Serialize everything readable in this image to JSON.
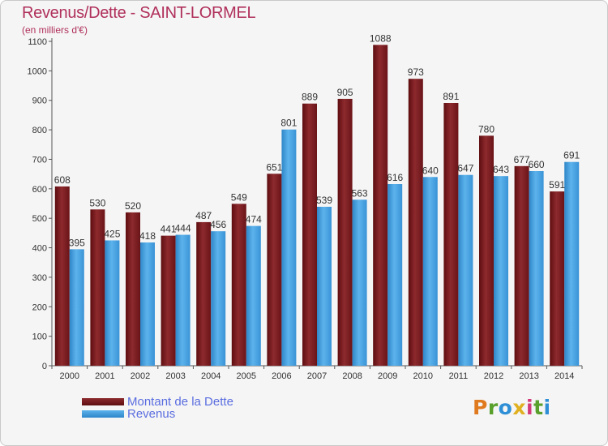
{
  "title": "Revenus/Dette - SAINT-LORMEL",
  "subtitle": "(en milliers d'€)",
  "logo_text": "Proxiti",
  "colors": {
    "dette": "#7a1c1f",
    "revenus": "#4aa3e0",
    "title": "#b0305b",
    "legend_text": "#5a6de0"
  },
  "chart_data": {
    "type": "bar",
    "title": "Revenus/Dette - SAINT-LORMEL",
    "subtitle": "(en milliers d'€)",
    "xlabel": "",
    "ylabel": "",
    "ylim": [
      0,
      1100
    ],
    "yticks": [
      0,
      100,
      200,
      300,
      400,
      500,
      600,
      700,
      800,
      900,
      1000,
      1100
    ],
    "grid": false,
    "legend_position": "bottom-left",
    "categories": [
      "2000",
      "2001",
      "2002",
      "2003",
      "2004",
      "2005",
      "2006",
      "2007",
      "2008",
      "2009",
      "2010",
      "2011",
      "2012",
      "2013",
      "2014"
    ],
    "series": [
      {
        "name": "Montant de la Dette",
        "values": [
          608,
          530,
          520,
          441,
          487,
          549,
          651,
          889,
          905,
          1088,
          973,
          891,
          780,
          677,
          591
        ]
      },
      {
        "name": "Revenus",
        "values": [
          395,
          425,
          418,
          444,
          456,
          474,
          801,
          539,
          563,
          616,
          640,
          647,
          643,
          660,
          691
        ]
      }
    ]
  }
}
